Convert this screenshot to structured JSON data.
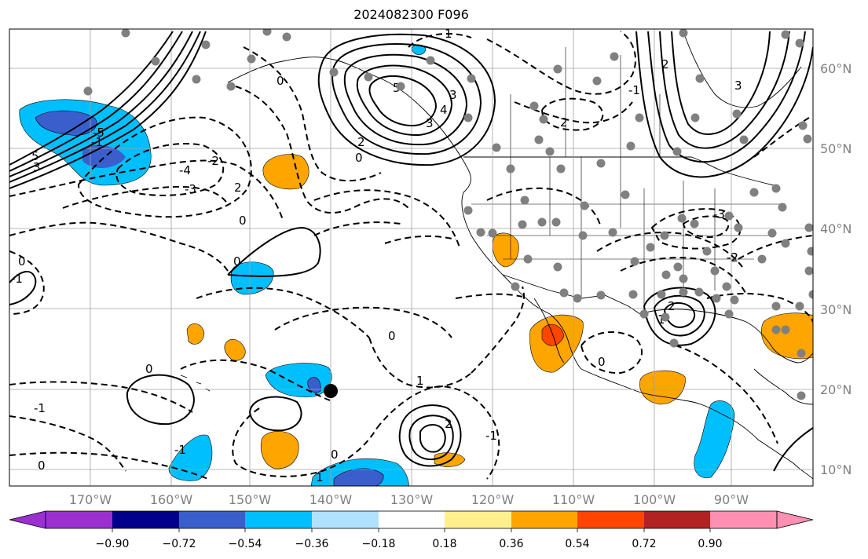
{
  "title": "2024082300 F096",
  "map": {
    "longitude_labels": [
      "170°W",
      "160°W",
      "150°W",
      "140°W",
      "130°W",
      "120°W",
      "110°W",
      "100°W",
      "90°W"
    ],
    "latitude_labels": [
      "60°N",
      "50°N",
      "40°N",
      "30°N",
      "20°N",
      "10°N"
    ],
    "contour_labels": [
      "5",
      "3",
      "2",
      "0",
      "-1",
      "-2",
      "-3",
      "-4",
      "-5",
      "1",
      "3",
      "2",
      "5",
      "4",
      "3",
      "2",
      "0",
      "-1",
      "0",
      "-2",
      "-3",
      "0",
      "1",
      "2",
      "-1",
      "0",
      "-1",
      "0",
      "-1",
      "1",
      "2",
      "0",
      "0",
      "-1",
      "0",
      "3",
      "2",
      "-2",
      "1",
      "0"
    ],
    "grid": true,
    "marker": "black-dot",
    "station_dots": "gray"
  },
  "colorbar": {
    "ticks": [
      "−0.90",
      "−0.72",
      "−0.54",
      "−0.36",
      "−0.18",
      "0.18",
      "0.36",
      "0.54",
      "0.72",
      "0.90"
    ],
    "colors": [
      "#9b30d0",
      "#00008b",
      "#3a5fcd",
      "#00bfff",
      "#b0e2ff",
      "#ffffff",
      "#fff08c",
      "#ffa500",
      "#ff4500",
      "#b22222",
      "#ff8fb3"
    ]
  }
}
